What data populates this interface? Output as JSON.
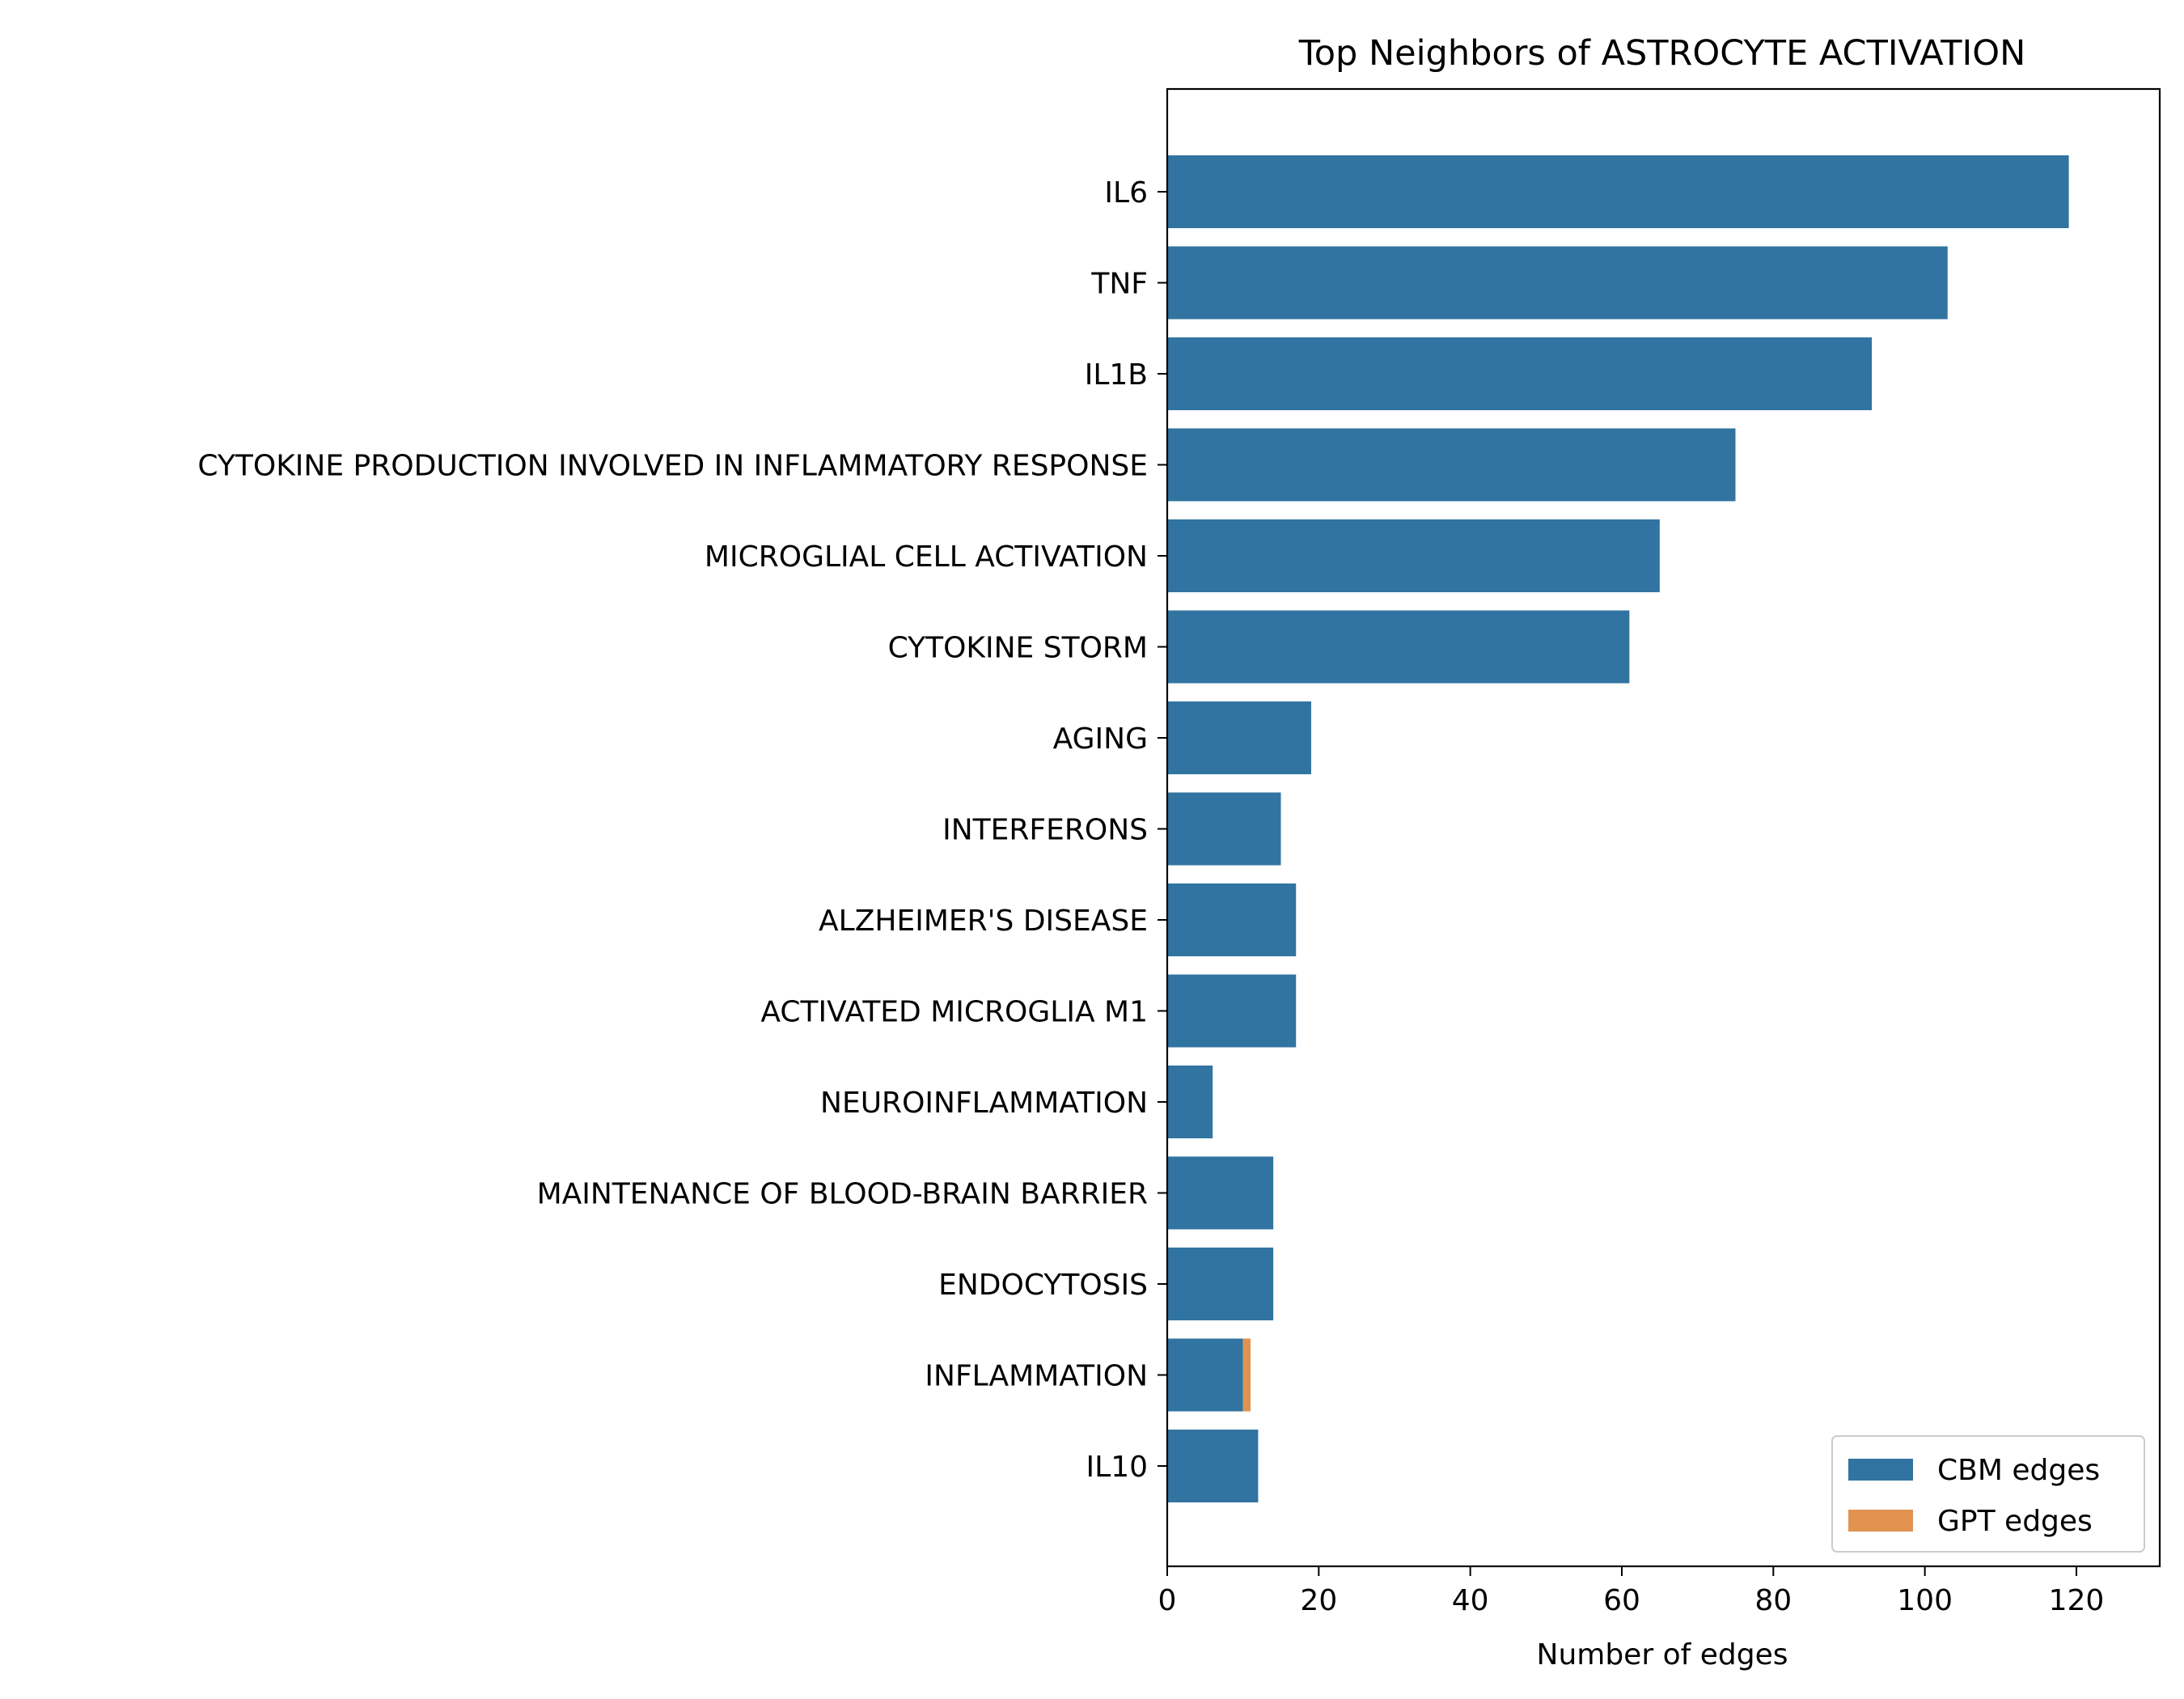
{
  "chart_data": {
    "type": "bar",
    "orientation": "horizontal",
    "stacked": true,
    "title": "Top Neighbors of ASTROCYTE ACTIVATION",
    "xlabel": "Number of edges",
    "ylabel": "",
    "xlim": [
      0,
      131
    ],
    "x_ticks": [
      0,
      20,
      40,
      60,
      80,
      100,
      120
    ],
    "grid": false,
    "legend_position": "lower-right",
    "categories": [
      "IL6",
      "TNF",
      "IL1B",
      "CYTOKINE PRODUCTION INVOLVED IN INFLAMMATORY RESPONSE",
      "MICROGLIAL CELL ACTIVATION",
      "CYTOKINE STORM",
      "AGING",
      "INTERFERONS",
      "ALZHEIMER'S DISEASE",
      "ACTIVATED MICROGLIA M1",
      "NEUROINFLAMMATION",
      "MAINTENANCE OF BLOOD-BRAIN BARRIER",
      "ENDOCYTOSIS",
      "INFLAMMATION",
      "IL10"
    ],
    "series": [
      {
        "name": "CBM edges",
        "color": "#3274a1",
        "values": [
          119,
          103,
          93,
          75,
          65,
          61,
          19,
          15,
          17,
          17,
          6,
          14,
          14,
          10,
          12
        ]
      },
      {
        "name": "GPT edges",
        "color": "#e1924f",
        "values": [
          0,
          0,
          0,
          0,
          0,
          0,
          0,
          0,
          0,
          0,
          0,
          0,
          0,
          1,
          0
        ]
      }
    ]
  }
}
